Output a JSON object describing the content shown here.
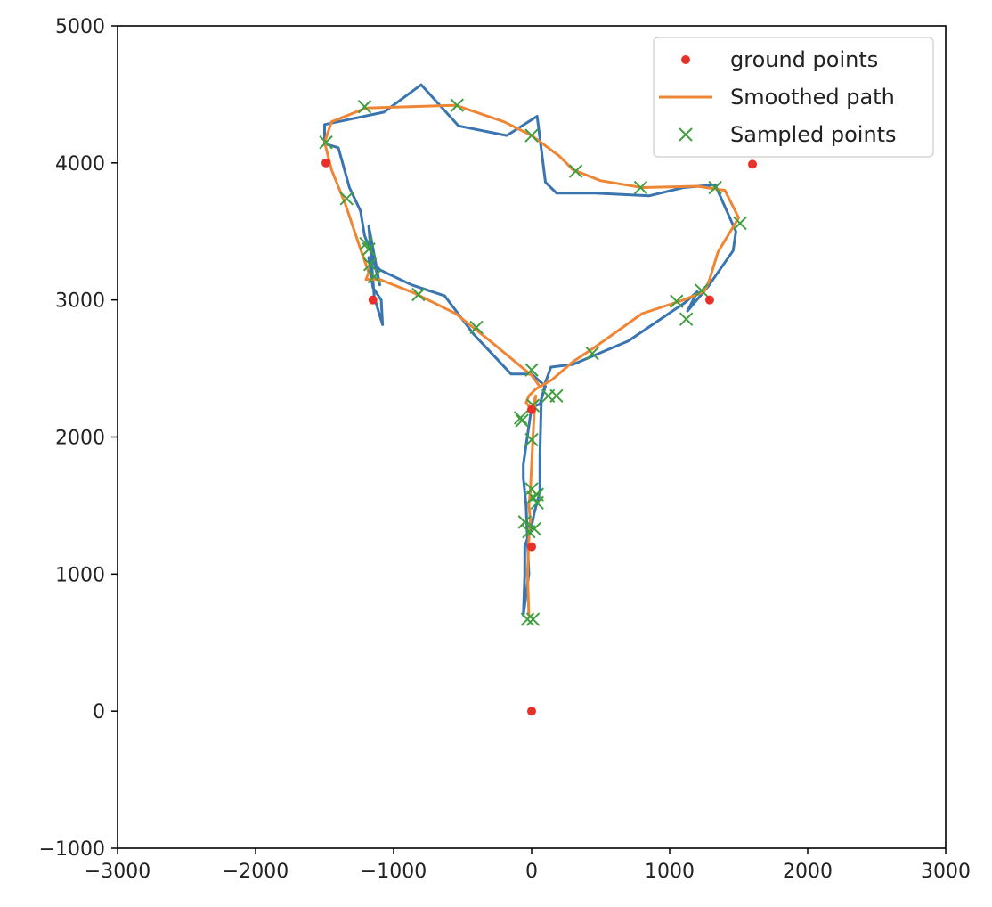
{
  "chart_data": {
    "type": "line",
    "title": "",
    "xlabel": "",
    "ylabel": "",
    "xlim": [
      -3000,
      3000
    ],
    "ylim": [
      -1000,
      5000
    ],
    "x_ticks": [
      -3000,
      -2000,
      -1000,
      0,
      1000,
      2000,
      3000
    ],
    "y_ticks": [
      -1000,
      0,
      1000,
      2000,
      3000,
      4000,
      5000
    ],
    "x_tick_labels": [
      "−3000",
      "−2000",
      "−1000",
      "0",
      "1000",
      "2000",
      "3000"
    ],
    "y_tick_labels": [
      "−1000",
      "0",
      "1000",
      "2000",
      "3000",
      "4000",
      "5000"
    ],
    "grid": false,
    "legend_position": "top-right",
    "series": [
      {
        "name": "",
        "kind": "line",
        "color": "#3a75b0",
        "x": [
          -1080,
          -1140,
          -1180,
          -1100,
          -1150,
          -1210,
          -1240,
          -1320,
          -1400,
          -1430,
          -1500,
          -1500,
          -1070,
          -800,
          -530,
          -180,
          40,
          100,
          180,
          460,
          850,
          1100,
          1330,
          1480,
          1460,
          1280,
          1130,
          1200,
          1110,
          700,
          300,
          140,
          100,
          90,
          70,
          60,
          60,
          20,
          0,
          -50,
          -50,
          -60,
          -20,
          -40,
          -50,
          -60,
          -60,
          0,
          60,
          100,
          0,
          -150,
          -420,
          -630,
          -870,
          -1100,
          -1180,
          -1150,
          -1090,
          -1080
        ],
        "y": [
          2820,
          3020,
          3540,
          3110,
          3310,
          3470,
          3650,
          3820,
          4110,
          4120,
          4140,
          4280,
          4370,
          4570,
          4270,
          4200,
          4340,
          3860,
          3780,
          3780,
          3760,
          3820,
          3840,
          3500,
          3360,
          3100,
          2920,
          3060,
          2980,
          2700,
          2530,
          2510,
          2400,
          2350,
          2280,
          1870,
          1600,
          1450,
          1350,
          1200,
          1000,
          700,
          1000,
          1500,
          1600,
          1700,
          1800,
          2220,
          2240,
          2370,
          2460,
          2460,
          2750,
          3030,
          3110,
          3220,
          3310,
          3090,
          3000,
          2820
        ]
      },
      {
        "name": "Smoothed path",
        "kind": "line",
        "color": "#ef8636",
        "x": [
          -20,
          -30,
          -20,
          -10,
          -20,
          -10,
          0,
          10,
          20,
          30,
          0,
          -40,
          -20,
          30,
          150,
          300,
          450,
          800,
          1100,
          1200,
          1250,
          1290,
          1350,
          1500,
          1400,
          1200,
          800,
          500,
          300,
          200,
          0,
          -200,
          -550,
          -1200,
          -1450,
          -1500,
          -1450,
          -1350,
          -1250,
          -1180,
          -1200,
          -1100,
          -850,
          -550,
          -300,
          0,
          50
        ],
        "y": [
          700,
          1000,
          1250,
          1400,
          1500,
          1600,
          1800,
          2000,
          2200,
          2300,
          2200,
          2250,
          2300,
          2350,
          2420,
          2550,
          2650,
          2900,
          3000,
          3040,
          3060,
          3150,
          3350,
          3600,
          3800,
          3830,
          3820,
          3870,
          3950,
          4050,
          4200,
          4300,
          4420,
          4400,
          4300,
          4150,
          3950,
          3700,
          3400,
          3200,
          3150,
          3150,
          3050,
          2900,
          2700,
          2450,
          2380
        ]
      },
      {
        "name": "Sampled points",
        "kind": "marker-x",
        "color": "#3f9f3f",
        "x": [
          -30,
          10,
          -20,
          20,
          -50,
          40,
          10,
          0,
          40,
          -80,
          0,
          -70,
          10,
          120,
          180,
          0,
          440,
          1050,
          1120,
          1230,
          1510,
          1330,
          790,
          320,
          0,
          -540,
          -1210,
          -1490,
          -1340,
          -1200,
          -1170,
          -1140,
          -820,
          -400,
          -1180
        ],
        "y": [
          670,
          670,
          1310,
          1330,
          1380,
          1520,
          1560,
          1620,
          1580,
          2140,
          1980,
          2120,
          2230,
          2300,
          2300,
          2490,
          2610,
          2990,
          2860,
          3070,
          3560,
          3820,
          3820,
          3940,
          4200,
          4420,
          4410,
          4150,
          3740,
          3410,
          3260,
          3170,
          3040,
          2800,
          3370
        ]
      },
      {
        "name": "ground points",
        "kind": "scatter",
        "color": "#e8302a",
        "x": [
          0,
          0,
          0,
          -1150,
          1290,
          -1490,
          1600
        ],
        "y": [
          0,
          1200,
          2200,
          3000,
          3000,
          4000,
          3990
        ]
      }
    ],
    "legend_entries": [
      {
        "label": "ground points",
        "series_index": 3
      },
      {
        "label": "Smoothed path",
        "series_index": 1
      },
      {
        "label": "Sampled points",
        "series_index": 2
      }
    ]
  }
}
